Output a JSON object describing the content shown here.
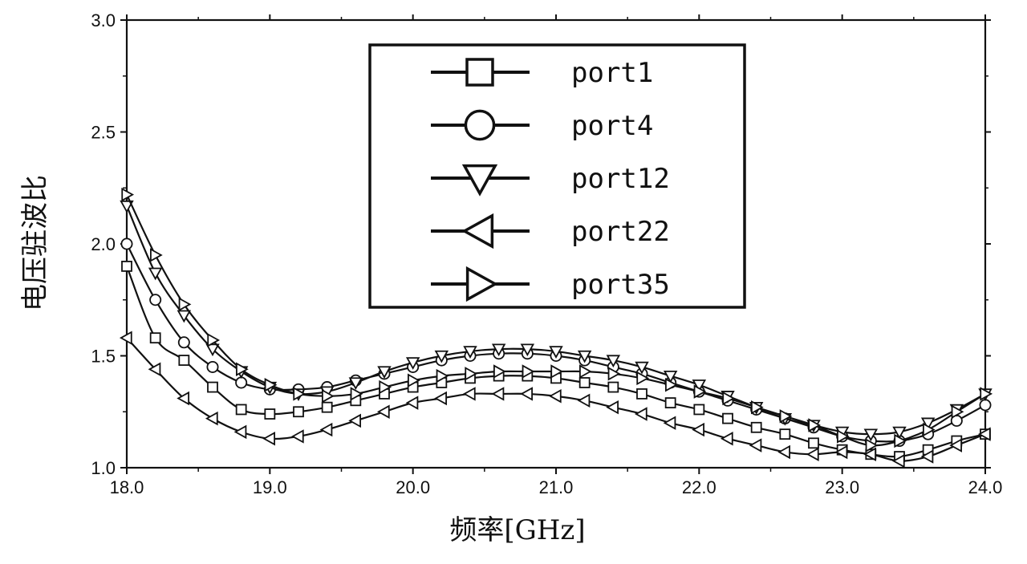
{
  "chart_data": {
    "type": "line",
    "xlabel": "频率[GHz]",
    "ylabel": "电压驻波比",
    "xlim": [
      18.0,
      24.0
    ],
    "ylim": [
      1.0,
      3.0
    ],
    "xticks": [
      "18.0",
      "19.0",
      "20.0",
      "21.0",
      "22.0",
      "23.0",
      "24.0"
    ],
    "yticks": [
      "1.0",
      "1.5",
      "2.0",
      "2.5",
      "3.0"
    ],
    "grid": false,
    "legend_position": "top-center",
    "x": [
      18.0,
      18.2,
      18.4,
      18.6,
      18.8,
      19.0,
      19.2,
      19.4,
      19.6,
      19.8,
      20.0,
      20.2,
      20.4,
      20.6,
      20.8,
      21.0,
      21.2,
      21.4,
      21.6,
      21.8,
      22.0,
      22.2,
      22.4,
      22.6,
      22.8,
      23.0,
      23.2,
      23.4,
      23.6,
      23.8,
      24.0
    ],
    "series": [
      {
        "name": "port1",
        "marker": "square",
        "values": [
          1.9,
          1.58,
          1.48,
          1.36,
          1.26,
          1.24,
          1.25,
          1.27,
          1.3,
          1.33,
          1.36,
          1.38,
          1.4,
          1.41,
          1.41,
          1.4,
          1.38,
          1.36,
          1.33,
          1.29,
          1.26,
          1.22,
          1.18,
          1.15,
          1.11,
          1.08,
          1.06,
          1.05,
          1.08,
          1.12,
          1.15
        ]
      },
      {
        "name": "port4",
        "marker": "circle",
        "values": [
          2.0,
          1.75,
          1.56,
          1.45,
          1.38,
          1.35,
          1.35,
          1.36,
          1.39,
          1.42,
          1.45,
          1.48,
          1.5,
          1.51,
          1.51,
          1.5,
          1.48,
          1.45,
          1.42,
          1.38,
          1.34,
          1.3,
          1.26,
          1.22,
          1.18,
          1.14,
          1.12,
          1.12,
          1.15,
          1.21,
          1.28
        ]
      },
      {
        "name": "port12",
        "marker": "triangle-down",
        "values": [
          2.17,
          1.87,
          1.68,
          1.53,
          1.43,
          1.36,
          1.33,
          1.34,
          1.38,
          1.43,
          1.47,
          1.5,
          1.52,
          1.53,
          1.53,
          1.52,
          1.5,
          1.48,
          1.45,
          1.41,
          1.37,
          1.32,
          1.27,
          1.22,
          1.19,
          1.16,
          1.15,
          1.16,
          1.2,
          1.26,
          1.33
        ]
      },
      {
        "name": "port22",
        "marker": "triangle-left",
        "values": [
          1.58,
          1.44,
          1.31,
          1.22,
          1.16,
          1.13,
          1.14,
          1.17,
          1.21,
          1.25,
          1.29,
          1.31,
          1.33,
          1.33,
          1.33,
          1.32,
          1.3,
          1.27,
          1.24,
          1.2,
          1.17,
          1.13,
          1.1,
          1.07,
          1.06,
          1.07,
          1.06,
          1.03,
          1.05,
          1.1,
          1.15
        ]
      },
      {
        "name": "port35",
        "marker": "triangle-right",
        "values": [
          2.22,
          1.95,
          1.73,
          1.57,
          1.44,
          1.37,
          1.33,
          1.32,
          1.33,
          1.36,
          1.39,
          1.41,
          1.42,
          1.43,
          1.43,
          1.43,
          1.43,
          1.42,
          1.4,
          1.37,
          1.34,
          1.31,
          1.27,
          1.23,
          1.19,
          1.14,
          1.1,
          1.12,
          1.17,
          1.25,
          1.33
        ]
      }
    ]
  }
}
